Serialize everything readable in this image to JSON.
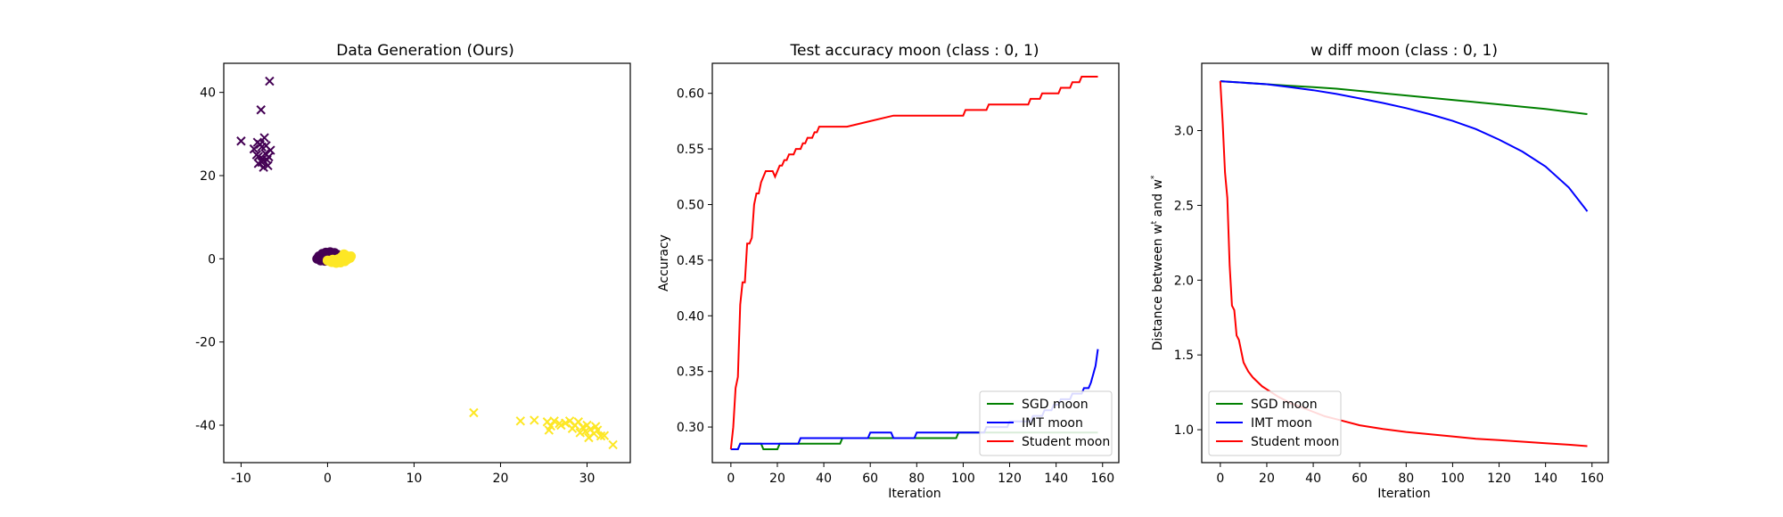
{
  "chart_data": [
    {
      "type": "scatter",
      "title": "Data Generation (Ours)",
      "xlabel": "",
      "ylabel": "",
      "xlim": [
        -12,
        35
      ],
      "ylim": [
        -49,
        47
      ],
      "xticks": [
        -10,
        0,
        10,
        20,
        30
      ],
      "yticks": [
        -40,
        -20,
        0,
        20,
        40
      ],
      "grid": false,
      "colors": {
        "class0": "#440154",
        "class1": "#fde725"
      },
      "series": [
        {
          "marker": "x",
          "class": 0,
          "points": [
            [
              -6.7,
              42.7
            ],
            [
              -7.7,
              35.8
            ],
            [
              -10,
              28.3
            ],
            [
              -7.3,
              29.1
            ],
            [
              -8.1,
              28.0
            ],
            [
              -8.5,
              26.4
            ],
            [
              -7.6,
              26.9
            ],
            [
              -6.6,
              26.1
            ],
            [
              -7.2,
              25.3
            ],
            [
              -8.0,
              24.6
            ],
            [
              -7.0,
              23.8
            ],
            [
              -7.6,
              23.2
            ],
            [
              -6.9,
              22.4
            ],
            [
              -7.4,
              22.0
            ],
            [
              -8.2,
              25.0
            ],
            [
              -6.8,
              24.5
            ],
            [
              -7.8,
              27.5
            ],
            [
              -7.1,
              27.2
            ],
            [
              -7.5,
              24.0
            ],
            [
              -8.0,
              22.9
            ]
          ]
        },
        {
          "marker": "x",
          "class": 1,
          "points": [
            [
              16.9,
              -37.0
            ],
            [
              22.3,
              -39.0
            ],
            [
              23.9,
              -38.8
            ],
            [
              25.4,
              -39.2
            ],
            [
              25.8,
              -40.2
            ],
            [
              26.2,
              -39.0
            ],
            [
              27.5,
              -39.5
            ],
            [
              28.0,
              -39.0
            ],
            [
              28.6,
              -40.0
            ],
            [
              29.0,
              -39.2
            ],
            [
              29.5,
              -40.5
            ],
            [
              30.0,
              -40.0
            ],
            [
              30.4,
              -41.0
            ],
            [
              29.8,
              -41.5
            ],
            [
              30.8,
              -42.0
            ],
            [
              31.2,
              -41.2
            ],
            [
              31.6,
              -42.6
            ],
            [
              30.2,
              -43.0
            ],
            [
              29.2,
              -41.8
            ],
            [
              28.3,
              -40.8
            ],
            [
              32.0,
              -42.5
            ],
            [
              31.0,
              -40.3
            ],
            [
              33.0,
              -44.7
            ],
            [
              25.6,
              -41.2
            ],
            [
              27.0,
              -40.0
            ],
            [
              26.8,
              -39.6
            ]
          ]
        },
        {
          "marker": "o",
          "class": 0,
          "points": [
            [
              -1.0,
              0.6
            ],
            [
              -0.6,
              1.2
            ],
            [
              -0.2,
              1.5
            ],
            [
              0.3,
              1.6
            ],
            [
              0.8,
              1.4
            ],
            [
              1.1,
              1.0
            ],
            [
              1.3,
              0.5
            ],
            [
              -1.2,
              0.0
            ],
            [
              -0.8,
              -0.4
            ],
            [
              -0.3,
              -0.5
            ],
            [
              0.2,
              -0.3
            ],
            [
              0.5,
              0.1
            ],
            [
              0.0,
              0.8
            ],
            [
              -0.5,
              0.3
            ],
            [
              0.7,
              0.7
            ],
            [
              1.4,
              0.0
            ],
            [
              -0.9,
              -0.2
            ],
            [
              0.1,
              1.0
            ],
            [
              -0.4,
              0.9
            ],
            [
              0.9,
              0.2
            ]
          ]
        },
        {
          "marker": "o",
          "class": 1,
          "points": [
            [
              0.0,
              -0.4
            ],
            [
              0.5,
              -0.8
            ],
            [
              1.0,
              -1.0
            ],
            [
              1.5,
              -0.9
            ],
            [
              2.0,
              -0.6
            ],
            [
              2.3,
              -0.1
            ],
            [
              2.4,
              0.4
            ],
            [
              2.0,
              0.9
            ],
            [
              1.6,
              0.4
            ],
            [
              1.2,
              -0.1
            ],
            [
              0.8,
              -0.5
            ],
            [
              2.6,
              0.2
            ],
            [
              1.8,
              -0.3
            ],
            [
              0.3,
              -0.6
            ],
            [
              2.2,
              0.7
            ],
            [
              1.4,
              -0.6
            ],
            [
              2.7,
              0.6
            ],
            [
              1.9,
              1.1
            ],
            [
              1.1,
              -0.8
            ],
            [
              0.6,
              -0.2
            ]
          ]
        }
      ]
    },
    {
      "type": "line",
      "title": "Test accuracy moon (class : 0, 1)",
      "xlabel": "Iteration",
      "ylabel": "Accuracy",
      "xlim": [
        -8,
        167
      ],
      "ylim": [
        0.268,
        0.627
      ],
      "xticks": [
        0,
        20,
        40,
        60,
        80,
        100,
        120,
        140,
        160
      ],
      "yticks": [
        0.3,
        0.35,
        0.4,
        0.45,
        0.5,
        0.55,
        0.6
      ],
      "grid": false,
      "legend": "lower-right",
      "series": [
        {
          "name": "SGD moon",
          "color": "#008000",
          "x": [
            0,
            3,
            4,
            13,
            14,
            20,
            21,
            47,
            48,
            97,
            98,
            158
          ],
          "y": [
            0.28,
            0.28,
            0.285,
            0.285,
            0.28,
            0.28,
            0.285,
            0.285,
            0.29,
            0.29,
            0.295,
            0.295
          ]
        },
        {
          "name": "IMT moon",
          "color": "#0000ff",
          "x": [
            0,
            3,
            4,
            29,
            30,
            59,
            60,
            69,
            70,
            79,
            80,
            109,
            110,
            119,
            120,
            129,
            130,
            134,
            135,
            138,
            139,
            141,
            142,
            146,
            147,
            151,
            152,
            154,
            155,
            157,
            158
          ],
          "y": [
            0.28,
            0.28,
            0.285,
            0.285,
            0.29,
            0.29,
            0.295,
            0.295,
            0.29,
            0.29,
            0.295,
            0.295,
            0.3,
            0.3,
            0.305,
            0.305,
            0.31,
            0.31,
            0.315,
            0.315,
            0.32,
            0.32,
            0.325,
            0.325,
            0.33,
            0.33,
            0.335,
            0.335,
            0.34,
            0.355,
            0.37
          ]
        },
        {
          "name": "Student moon",
          "color": "#ff0000",
          "x": [
            0,
            1,
            2,
            3,
            4,
            5,
            6,
            7,
            8,
            9,
            10,
            11,
            12,
            13,
            14,
            15,
            16,
            17,
            18,
            19,
            20,
            21,
            22,
            23,
            24,
            25,
            26,
            27,
            28,
            29,
            30,
            31,
            32,
            33,
            34,
            35,
            36,
            37,
            38,
            39,
            40,
            42,
            44,
            50,
            60,
            70,
            80,
            90,
            100,
            101,
            110,
            111,
            120,
            128,
            129,
            133,
            134,
            136,
            137,
            141,
            142,
            146,
            147,
            150,
            151,
            158
          ],
          "y": [
            0.28,
            0.3,
            0.335,
            0.345,
            0.41,
            0.43,
            0.43,
            0.465,
            0.465,
            0.47,
            0.5,
            0.51,
            0.51,
            0.52,
            0.525,
            0.53,
            0.53,
            0.53,
            0.53,
            0.525,
            0.53,
            0.535,
            0.535,
            0.54,
            0.54,
            0.545,
            0.545,
            0.545,
            0.55,
            0.55,
            0.55,
            0.555,
            0.555,
            0.56,
            0.56,
            0.56,
            0.565,
            0.565,
            0.57,
            0.57,
            0.57,
            0.57,
            0.57,
            0.57,
            0.575,
            0.58,
            0.58,
            0.58,
            0.58,
            0.585,
            0.585,
            0.59,
            0.59,
            0.59,
            0.595,
            0.595,
            0.6,
            0.6,
            0.6,
            0.6,
            0.605,
            0.605,
            0.61,
            0.61,
            0.615,
            0.615
          ]
        }
      ]
    },
    {
      "type": "line",
      "title": "w diff moon (class : 0, 1)",
      "xlabel": "Iteration",
      "ylabel": "Distance between w",
      "ylabel_sup_t": "t",
      "ylabel_mid": " and w",
      "ylabel_sup_star": "*",
      "xlim": [
        -8,
        167
      ],
      "ylim": [
        0.78,
        3.45
      ],
      "xticks": [
        0,
        20,
        40,
        60,
        80,
        100,
        120,
        140,
        160
      ],
      "yticks": [
        1.0,
        1.5,
        2.0,
        2.5,
        3.0
      ],
      "grid": false,
      "legend": "lower-left",
      "series": [
        {
          "name": "SGD moon",
          "color": "#008000",
          "x": [
            0,
            10,
            20,
            30,
            40,
            50,
            60,
            70,
            80,
            90,
            100,
            110,
            120,
            130,
            140,
            150,
            158
          ],
          "y": [
            3.33,
            3.32,
            3.31,
            3.3,
            3.29,
            3.28,
            3.265,
            3.25,
            3.235,
            3.22,
            3.205,
            3.19,
            3.175,
            3.16,
            3.145,
            3.125,
            3.11
          ]
        },
        {
          "name": "IMT moon",
          "color": "#0000ff",
          "x": [
            0,
            10,
            20,
            30,
            40,
            50,
            60,
            70,
            80,
            90,
            100,
            110,
            120,
            130,
            140,
            150,
            158
          ],
          "y": [
            3.33,
            3.32,
            3.31,
            3.29,
            3.27,
            3.245,
            3.215,
            3.185,
            3.15,
            3.11,
            3.065,
            3.01,
            2.94,
            2.86,
            2.76,
            2.62,
            2.46
          ]
        },
        {
          "name": "Student moon",
          "color": "#ff0000",
          "x": [
            0,
            1,
            2,
            3,
            4,
            5,
            6,
            7,
            8,
            10,
            12,
            14,
            16,
            18,
            20,
            25,
            30,
            35,
            40,
            45,
            50,
            60,
            70,
            80,
            90,
            100,
            110,
            120,
            130,
            140,
            150,
            158
          ],
          "y": [
            3.33,
            3.05,
            2.72,
            2.55,
            2.1,
            1.83,
            1.8,
            1.63,
            1.6,
            1.45,
            1.39,
            1.35,
            1.32,
            1.29,
            1.27,
            1.22,
            1.18,
            1.15,
            1.12,
            1.09,
            1.07,
            1.03,
            1.005,
            0.985,
            0.97,
            0.955,
            0.94,
            0.93,
            0.92,
            0.91,
            0.9,
            0.89
          ]
        }
      ]
    }
  ]
}
